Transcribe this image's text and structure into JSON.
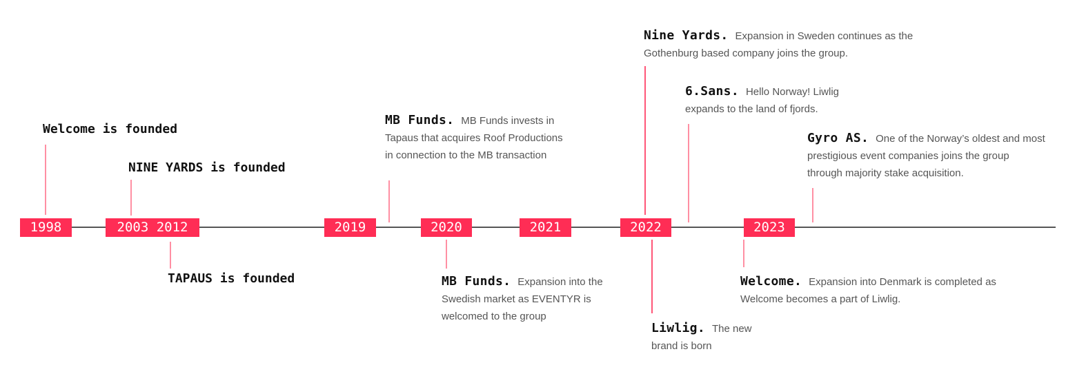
{
  "colors": {
    "accent": "#ff2d55",
    "connector": "#ff8fa3",
    "axis": "#555555"
  },
  "years": [
    "1998",
    "2003 2012",
    "2019",
    "2020",
    "2021",
    "2022",
    "2023"
  ],
  "milestones": {
    "welcome_founded": "Welcome is founded",
    "nine_yards_founded": "NINE YARDS is founded",
    "tapaus_founded": "TAPAUS is founded"
  },
  "events": [
    {
      "title": "MB Funds.",
      "text": "MB Funds invests in Tapaus that acquires Roof Productions in connection to the MB transaction"
    },
    {
      "title": "MB Funds.",
      "text": "Expansion into the Swedish market as EVENTYR is welcomed to the group"
    },
    {
      "title": "Nine Yards.",
      "text": "Expansion in Sweden continues as the Gothenburg based company joins the group."
    },
    {
      "title": "6.Sans.",
      "text": "Hello Norway! Liwlig expands to the land of fjords."
    },
    {
      "title": "Gyro AS.",
      "text": "One of the Norway’s oldest and most prestigious event companies joins the group through majority stake acquisition."
    },
    {
      "title": "Liwlig.",
      "text": "The new brand is born"
    },
    {
      "title": "Welcome.",
      "text": "Expansion into Denmark is completed as Welcome becomes a part of Liwlig."
    }
  ]
}
